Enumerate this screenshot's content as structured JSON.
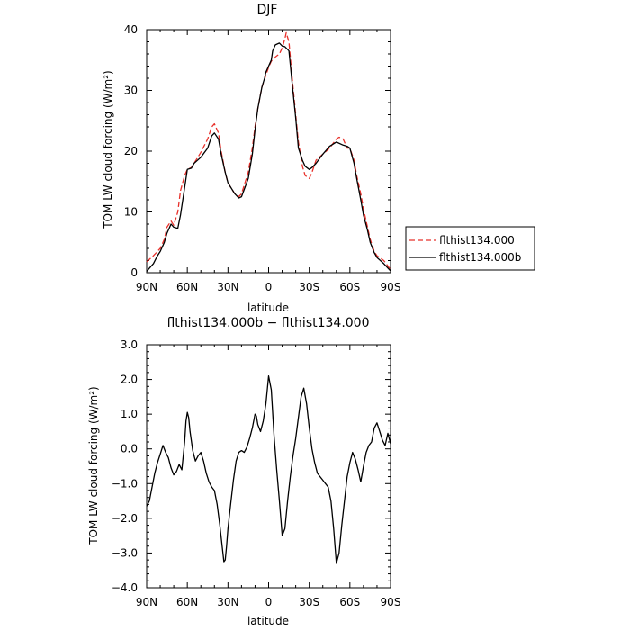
{
  "chart_data": [
    {
      "type": "line",
      "title": "DJF",
      "xlabel": "latitude",
      "ylabel": "TOM LW cloud forcing (W/m²)",
      "xlim": [
        90,
        -90
      ],
      "ylim": [
        0,
        40
      ],
      "x_ticks": [
        90,
        60,
        30,
        0,
        -30,
        -60,
        -90
      ],
      "x_tick_labels": [
        "90N",
        "60N",
        "30N",
        "0",
        "30S",
        "60S",
        "90S"
      ],
      "y_ticks": [
        0,
        10,
        20,
        30,
        40
      ],
      "y_tick_labels": [
        "0",
        "10",
        "20",
        "30",
        "40"
      ],
      "legend": "right",
      "series": [
        {
          "name": "flthist134.000",
          "color": "#e8302a",
          "dash": "dashed",
          "x": [
            90,
            85,
            80,
            77,
            75,
            72,
            70,
            67,
            65,
            62,
            60,
            57,
            55,
            50,
            45,
            42,
            40,
            37,
            35,
            32,
            30,
            25,
            22,
            20,
            15,
            12,
            10,
            8,
            5,
            2,
            0,
            -2,
            -5,
            -8,
            -10,
            -12,
            -13,
            -15,
            -17,
            -20,
            -22,
            -25,
            -27,
            -30,
            -32,
            -35,
            -40,
            -45,
            -50,
            -52,
            -55,
            -58,
            -60,
            -63,
            -65,
            -68,
            -70,
            -73,
            -75,
            -78,
            -80,
            -85,
            -90
          ],
          "y": [
            1.8,
            2.8,
            4.0,
            5.5,
            7.5,
            8.5,
            7.8,
            10.0,
            13.5,
            16.0,
            17.0,
            17.3,
            18.0,
            19.8,
            22.0,
            24.0,
            24.5,
            23.0,
            20.0,
            16.5,
            14.8,
            13.0,
            12.5,
            13.0,
            16.5,
            20.5,
            24.0,
            27.0,
            30.5,
            32.5,
            33.8,
            34.8,
            35.5,
            36.0,
            37.0,
            38.5,
            39.5,
            38.0,
            33.0,
            26.0,
            21.5,
            17.5,
            16.0,
            15.5,
            16.5,
            18.5,
            19.5,
            20.5,
            22.0,
            22.3,
            22.0,
            20.5,
            20.5,
            18.5,
            16.0,
            13.0,
            10.5,
            7.5,
            5.5,
            3.5,
            2.8,
            2.0,
            0.5
          ]
        },
        {
          "name": "flthist134.000b",
          "color": "#000000",
          "dash": "solid",
          "x": [
            90,
            87,
            85,
            82,
            80,
            77,
            75,
            72,
            70,
            67,
            65,
            62,
            60,
            57,
            55,
            50,
            45,
            42,
            40,
            37,
            35,
            32,
            30,
            25,
            22,
            20,
            15,
            12,
            10,
            8,
            5,
            3,
            2,
            0,
            -2,
            -3,
            -5,
            -8,
            -10,
            -12,
            -15,
            -17,
            -20,
            -22,
            -25,
            -27,
            -30,
            -32,
            -35,
            -40,
            -45,
            -50,
            -55,
            -58,
            -60,
            -63,
            -65,
            -68,
            -70,
            -73,
            -75,
            -78,
            -80,
            -85,
            -90
          ],
          "y": [
            0.2,
            1.0,
            1.5,
            2.8,
            3.5,
            5.0,
            6.5,
            8.0,
            7.5,
            7.3,
            9.5,
            14.0,
            17.0,
            17.2,
            18.0,
            19.0,
            20.5,
            22.5,
            23.0,
            22.0,
            19.5,
            16.5,
            14.8,
            13.0,
            12.3,
            12.5,
            15.5,
            19.5,
            23.5,
            27.0,
            30.5,
            32.0,
            33.0,
            34.0,
            35.0,
            36.5,
            37.5,
            37.8,
            37.3,
            37.2,
            36.5,
            32.0,
            25.5,
            20.5,
            18.5,
            17.5,
            17.0,
            17.3,
            18.0,
            19.5,
            20.8,
            21.5,
            21.0,
            20.8,
            20.5,
            18.0,
            15.5,
            12.0,
            9.5,
            7.0,
            5.0,
            3.3,
            2.5,
            1.5,
            0.3
          ]
        }
      ]
    },
    {
      "type": "line",
      "title": "flthist134.000b − flthist134.000",
      "xlabel": "latitude",
      "ylabel": "TOM LW cloud forcing (W/m²)",
      "xlim": [
        90,
        -90
      ],
      "ylim": [
        -4,
        3
      ],
      "x_ticks": [
        90,
        60,
        30,
        0,
        -30,
        -60,
        -90
      ],
      "x_tick_labels": [
        "90N",
        "60N",
        "30N",
        "0",
        "30S",
        "60S",
        "90S"
      ],
      "y_ticks": [
        -4,
        -3,
        -2,
        -1,
        0,
        1,
        2,
        3
      ],
      "y_tick_labels": [
        "−4.0",
        "−3.0",
        "−2.0",
        "−1.0",
        "0.0",
        "1.0",
        "2.0",
        "3.0"
      ],
      "series": [
        {
          "color": "#000000",
          "dash": "solid",
          "x": [
            90,
            88,
            86,
            84,
            82,
            80,
            78,
            76,
            74,
            72,
            70,
            68,
            66,
            64,
            62,
            61,
            60,
            59,
            58,
            56,
            54,
            52,
            50,
            48,
            46,
            44,
            42,
            40,
            38,
            36,
            34,
            33,
            32,
            31,
            30,
            28,
            26,
            24,
            22,
            20,
            18,
            16,
            14,
            12,
            10,
            9,
            8,
            6,
            4,
            2,
            0,
            -2,
            -4,
            -6,
            -8,
            -10,
            -12,
            -14,
            -16,
            -18,
            -20,
            -22,
            -24,
            -26,
            -28,
            -30,
            -32,
            -34,
            -36,
            -38,
            -40,
            -42,
            -44,
            -46,
            -48,
            -50,
            -52,
            -54,
            -56,
            -58,
            -60,
            -62,
            -64,
            -66,
            -68,
            -70,
            -72,
            -74,
            -76,
            -78,
            -80,
            -82,
            -84,
            -86,
            -88,
            -90
          ],
          "y": [
            -1.65,
            -1.5,
            -1.1,
            -0.7,
            -0.4,
            -0.15,
            0.1,
            -0.1,
            -0.25,
            -0.55,
            -0.75,
            -0.65,
            -0.45,
            -0.6,
            0.2,
            0.8,
            1.05,
            0.9,
            0.5,
            -0.05,
            -0.35,
            -0.2,
            -0.1,
            -0.35,
            -0.7,
            -0.95,
            -1.1,
            -1.2,
            -1.6,
            -2.2,
            -2.9,
            -3.25,
            -3.2,
            -2.8,
            -2.3,
            -1.6,
            -0.9,
            -0.35,
            -0.1,
            -0.05,
            -0.1,
            0.05,
            0.3,
            0.6,
            1.0,
            0.95,
            0.7,
            0.5,
            0.8,
            1.3,
            2.1,
            1.7,
            0.4,
            -0.6,
            -1.5,
            -2.5,
            -2.3,
            -1.5,
            -0.8,
            -0.2,
            0.3,
            0.9,
            1.5,
            1.75,
            1.3,
            0.6,
            0.0,
            -0.4,
            -0.7,
            -0.8,
            -0.9,
            -1.0,
            -1.1,
            -1.5,
            -2.3,
            -3.3,
            -3.0,
            -2.2,
            -1.5,
            -0.8,
            -0.4,
            -0.1,
            -0.3,
            -0.6,
            -0.95,
            -0.5,
            -0.1,
            0.1,
            0.2,
            0.6,
            0.75,
            0.5,
            0.25,
            0.1,
            0.45,
            0.15
          ]
        }
      ]
    }
  ]
}
